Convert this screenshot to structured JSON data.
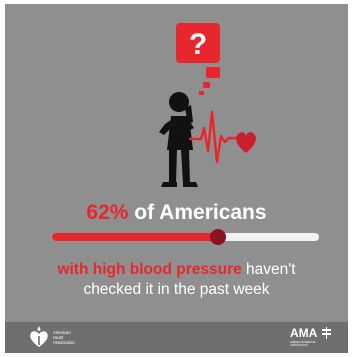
{
  "infographic": {
    "bubble_mark": "?",
    "headline": {
      "stat": "62%",
      "rest": "of Americans"
    },
    "progress": {
      "value_percent": 62,
      "fill_color": "#e8262e",
      "track_color": "#f2f2f2",
      "knob_color": "#8b1220"
    },
    "caption": {
      "emphasis": "with high blood pressure",
      "line1_rest": "haven't",
      "line2": "checked it in the past week"
    },
    "colors": {
      "background": "#8f8f8f",
      "accent": "#e8262e",
      "footer": "#6f6f6f"
    }
  },
  "footer": {
    "aha": {
      "icon": "heart-torch-icon",
      "lines": [
        "American",
        "Heart",
        "Association."
      ]
    },
    "ama": {
      "wordmark": "AMA",
      "icon": "ama-caduceus-icon",
      "sublines": [
        "AMERICAN MEDICAL",
        "ASSOCIATION"
      ]
    }
  }
}
